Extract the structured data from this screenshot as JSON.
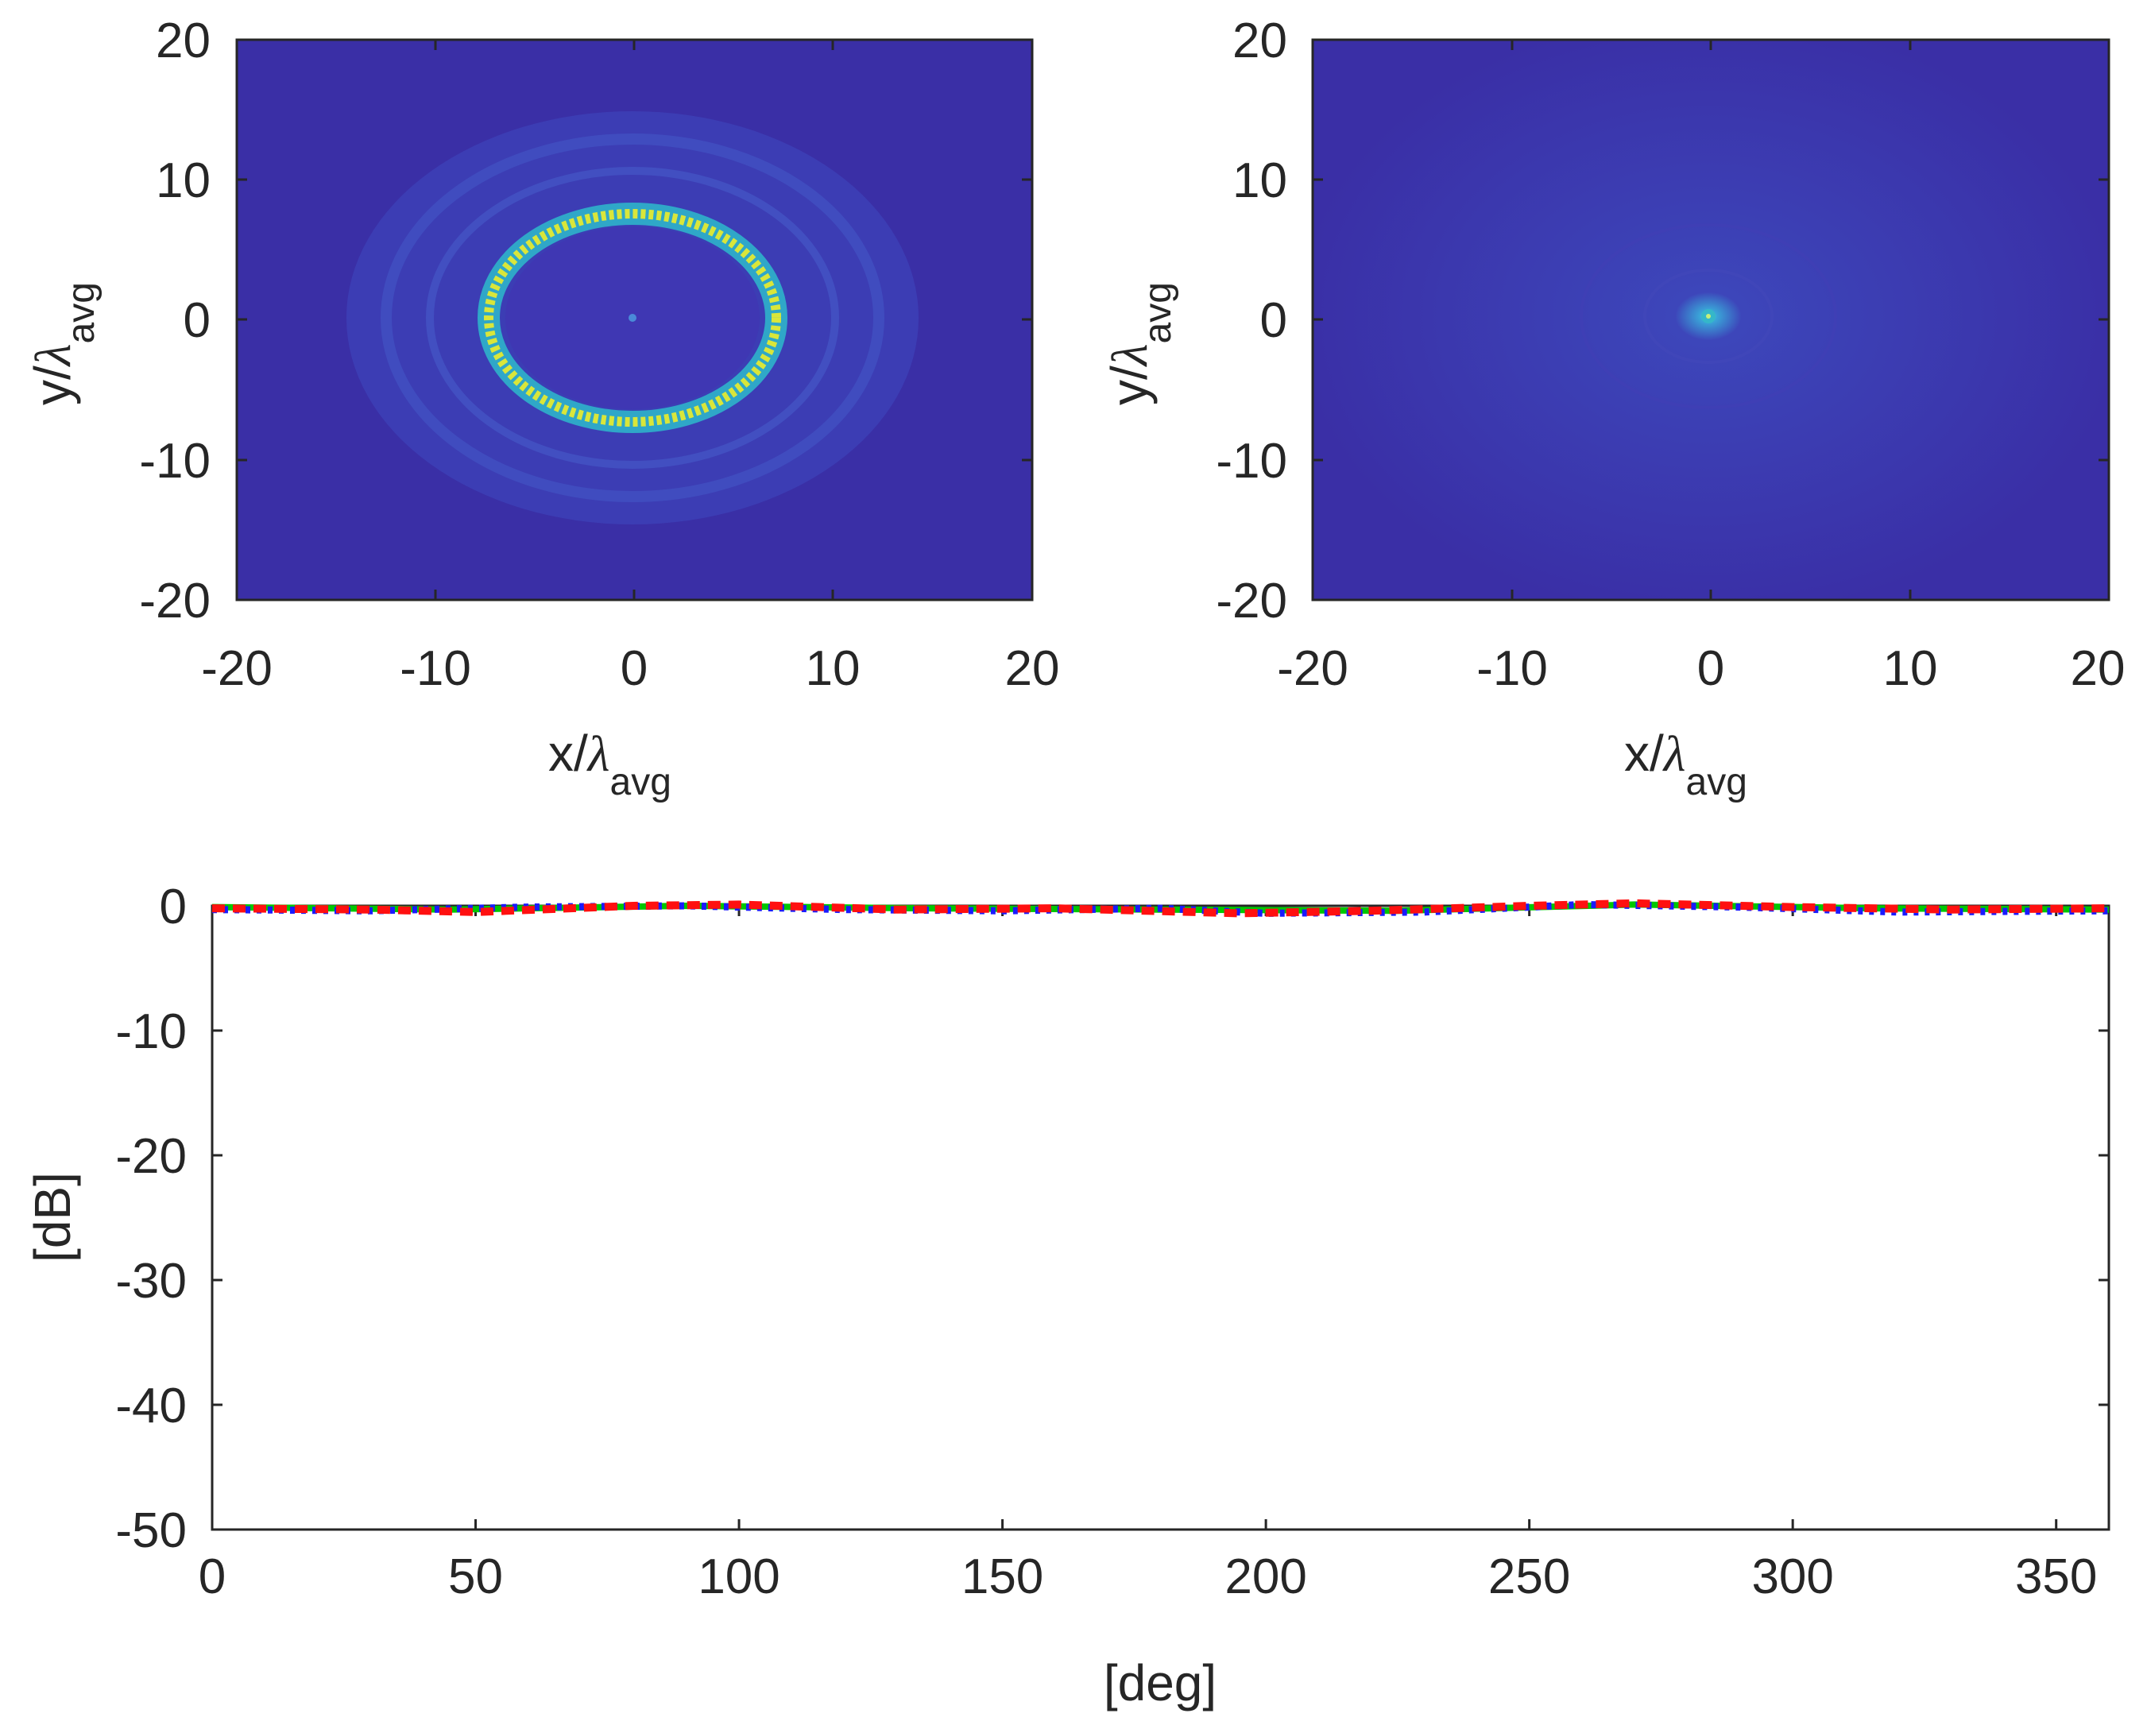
{
  "chart_data": [
    {
      "type": "heatmap",
      "panel": "top-left",
      "description_values": {
        "ring_radius": 7,
        "center": [
          0,
          0
        ]
      },
      "xlim": [
        -20,
        20
      ],
      "ylim": [
        -20,
        20
      ],
      "xticks": [
        "-20",
        "-10",
        "0",
        "10",
        "20"
      ],
      "yticks": [
        "20",
        "10",
        "0",
        "-10",
        "-20"
      ],
      "xlabel_main": "x/",
      "xlabel_greek": "λ",
      "xlabel_sub": "avg",
      "ylabel_main": "y/",
      "ylabel_greek": "λ",
      "ylabel_sub": "avg",
      "colors": {
        "background": "#3a2fa6",
        "ring": "#d9e63a",
        "ring_edge": "#2dc3a5"
      }
    },
    {
      "type": "heatmap",
      "panel": "top-right",
      "description_values": {
        "center_spot": [
          0,
          0
        ]
      },
      "xlim": [
        -20,
        20
      ],
      "ylim": [
        -20,
        20
      ],
      "xticks": [
        "-20",
        "-10",
        "0",
        "10",
        "20"
      ],
      "yticks": [
        "20",
        "10",
        "0",
        "-10",
        "-20"
      ],
      "xlabel_main": "x/",
      "xlabel_greek": "λ",
      "xlabel_sub": "avg",
      "ylabel_main": "y/",
      "ylabel_greek": "λ",
      "ylabel_sub": "avg",
      "colors": {
        "background": "#3a2fa6",
        "center": "#35b7c9"
      }
    },
    {
      "type": "line",
      "panel": "bottom",
      "xlim": [
        0,
        360
      ],
      "ylim": [
        -50,
        0
      ],
      "xticks": [
        0,
        50,
        100,
        150,
        200,
        250,
        300,
        350
      ],
      "yticks": [
        0,
        -10,
        -20,
        -30,
        -40,
        -50
      ],
      "xtick_labels": [
        "0",
        "50",
        "100",
        "150",
        "200",
        "250",
        "300",
        "350"
      ],
      "ytick_labels": [
        "0",
        "-10",
        "-20",
        "-30",
        "-40",
        "-50"
      ],
      "xlabel": "[deg]",
      "ylabel": "[dB]",
      "series": [
        {
          "name": "green",
          "color": "#00c800",
          "style": "solid",
          "x": [
            0,
            45,
            90,
            135,
            180,
            225,
            270,
            315,
            360
          ],
          "values": [
            -0.1,
            -0.3,
            0,
            -0.2,
            -0.3,
            -0.4,
            0.1,
            -0.2,
            -0.3
          ]
        },
        {
          "name": "blue",
          "color": "#1a1aff",
          "style": "dotted",
          "x": [
            0,
            30,
            60,
            90,
            120,
            150,
            180,
            200,
            230,
            260,
            290,
            320,
            360
          ],
          "values": [
            -0.3,
            -0.4,
            -0.1,
            0,
            -0.3,
            -0.4,
            -0.2,
            -0.6,
            -0.5,
            0.1,
            -0.1,
            -0.5,
            -0.4
          ]
        },
        {
          "name": "red",
          "color": "#ff1010",
          "style": "dashed",
          "x": [
            0,
            30,
            50,
            80,
            100,
            130,
            160,
            195,
            220,
            250,
            270,
            300,
            330,
            360
          ],
          "values": [
            -0.2,
            -0.3,
            -0.5,
            0,
            0.1,
            -0.3,
            -0.2,
            -0.6,
            -0.4,
            0,
            0.2,
            -0.1,
            -0.3,
            -0.2
          ]
        }
      ]
    }
  ]
}
